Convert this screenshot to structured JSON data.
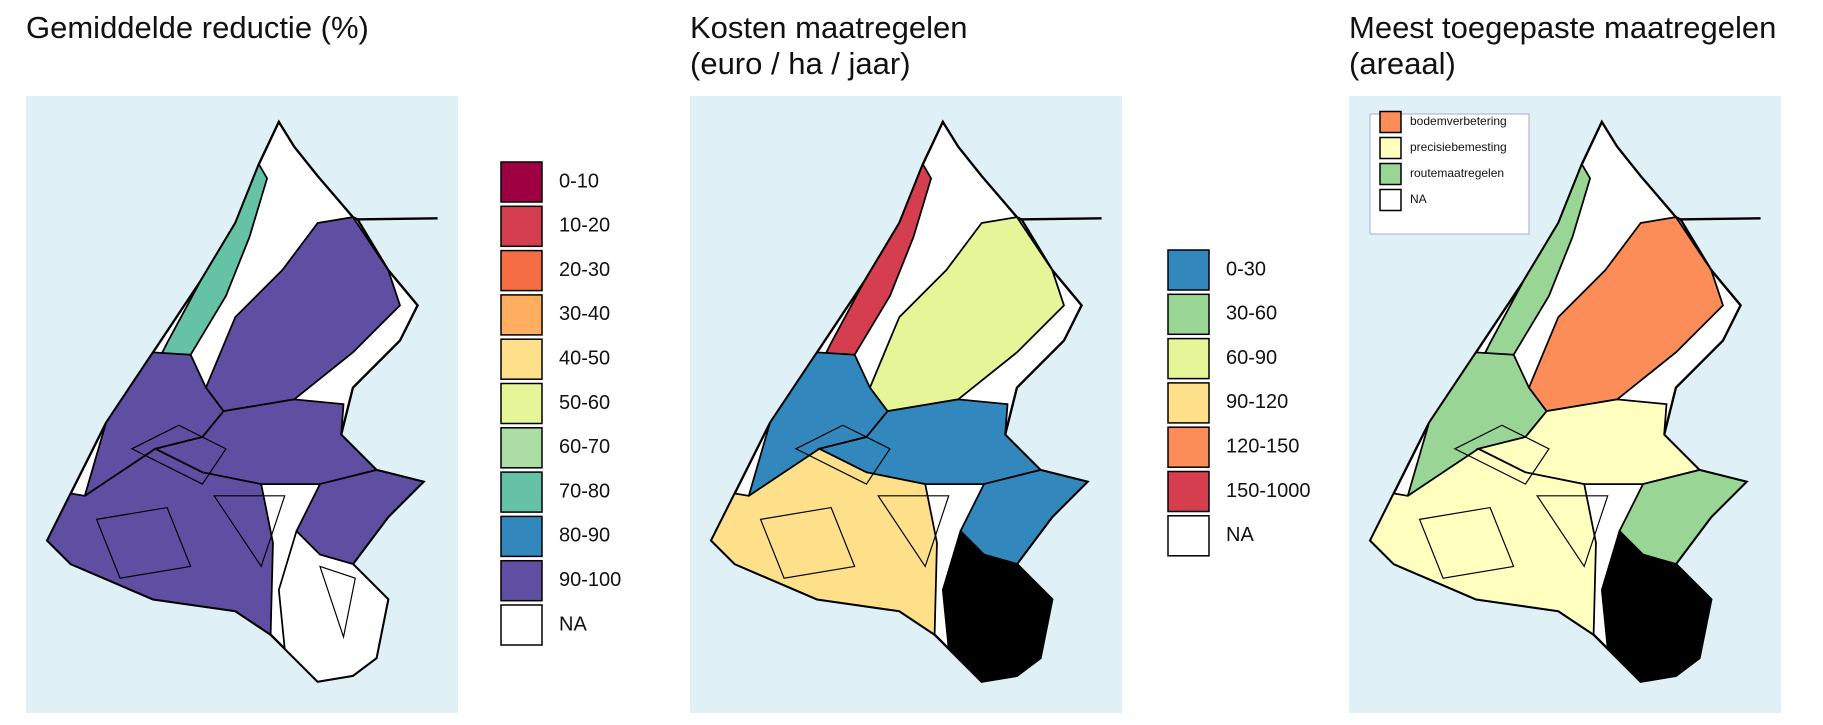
{
  "panels": [
    {
      "title": [
        "Gemiddelde reductie (%)"
      ],
      "legend": [
        {
          "label": "0-10",
          "color": "#9e0142"
        },
        {
          "label": "10-20",
          "color": "#d53e4f"
        },
        {
          "label": "20-30",
          "color": "#f46d43"
        },
        {
          "label": "30-40",
          "color": "#fdae61"
        },
        {
          "label": "40-50",
          "color": "#fee08b"
        },
        {
          "label": "50-60",
          "color": "#e6f598"
        },
        {
          "label": "60-70",
          "color": "#abdda4"
        },
        {
          "label": "70-80",
          "color": "#66c2a5"
        },
        {
          "label": "80-90",
          "color": "#3288bd"
        },
        {
          "label": "90-100",
          "color": "#5e4fa2"
        },
        {
          "label": "NA",
          "color": "#ffffff"
        }
      ]
    },
    {
      "title": [
        "Kosten maatregelen",
        "(euro / ha / jaar)"
      ],
      "legend": [
        {
          "label": "0-30",
          "color": "#3288bd"
        },
        {
          "label": "30-60",
          "color": "#99d594"
        },
        {
          "label": "60-90",
          "color": "#e6f598"
        },
        {
          "label": "90-120",
          "color": "#fee08b"
        },
        {
          "label": "120-150",
          "color": "#fc8d59"
        },
        {
          "label": "150-1000",
          "color": "#d53e4f"
        },
        {
          "label": "NA",
          "color": "#ffffff"
        }
      ]
    },
    {
      "title": [
        "Meest toegepaste maatregelen",
        "(areaal)"
      ],
      "legend": [
        {
          "label": "bodemverbetering",
          "color": "#fc8d59"
        },
        {
          "label": "precisiebemesting",
          "color": "#ffffbf"
        },
        {
          "label": "routemaatregelen",
          "color": "#99d594"
        },
        {
          "label": "NA",
          "color": "#ffffff"
        }
      ]
    }
  ]
}
